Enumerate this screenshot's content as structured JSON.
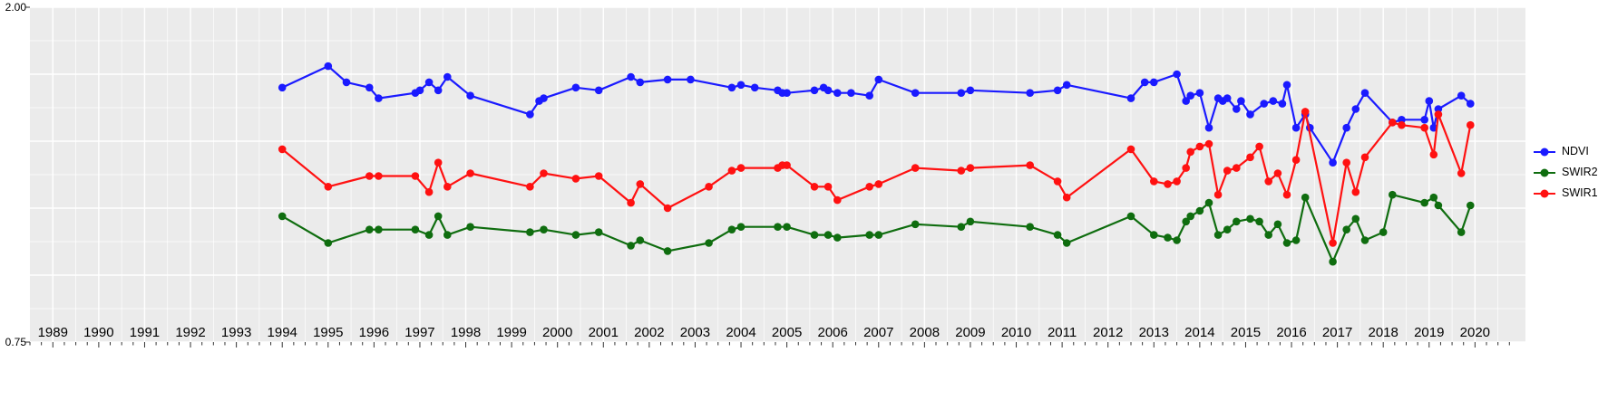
{
  "chart_data": {
    "type": "line",
    "title": "",
    "xlabel": "",
    "ylabel": "",
    "xlim": [
      1988.5,
      2021.1
    ],
    "ylim": [
      0.75,
      2.0
    ],
    "x_ticks": [
      1989,
      1990,
      1991,
      1992,
      1993,
      1994,
      1995,
      1996,
      1997,
      1998,
      1999,
      2000,
      2001,
      2002,
      2003,
      2004,
      2005,
      2006,
      2007,
      2008,
      2009,
      2010,
      2011,
      2012,
      2013,
      2014,
      2015,
      2016,
      2017,
      2018,
      2019,
      2020
    ],
    "y_gridlines": [
      0.75,
      1.0,
      1.25,
      1.5,
      1.75,
      2.0
    ],
    "y_tick_labels": [
      {
        "value": 2.0,
        "label": "2.00"
      },
      {
        "value": 0.75,
        "label": "0.75"
      }
    ],
    "panel_bg": "#EBEBEB",
    "grid_color": "#FFFFFF",
    "legend_position": "right",
    "series": [
      {
        "name": "NDVI",
        "color": "#1a1aff",
        "points": [
          [
            1994.0,
            1.7
          ],
          [
            1995.0,
            1.78
          ],
          [
            1995.4,
            1.72
          ],
          [
            1995.9,
            1.7
          ],
          [
            1996.1,
            1.66
          ],
          [
            1996.9,
            1.68
          ],
          [
            1997.0,
            1.69
          ],
          [
            1997.2,
            1.72
          ],
          [
            1997.4,
            1.69
          ],
          [
            1997.6,
            1.74
          ],
          [
            1998.1,
            1.67
          ],
          [
            1999.4,
            1.6
          ],
          [
            1999.6,
            1.65
          ],
          [
            1999.7,
            1.66
          ],
          [
            2000.4,
            1.7
          ],
          [
            2000.9,
            1.69
          ],
          [
            2001.6,
            1.74
          ],
          [
            2001.8,
            1.72
          ],
          [
            2002.4,
            1.73
          ],
          [
            2002.9,
            1.73
          ],
          [
            2003.8,
            1.7
          ],
          [
            2004.0,
            1.71
          ],
          [
            2004.3,
            1.7
          ],
          [
            2004.8,
            1.69
          ],
          [
            2004.9,
            1.68
          ],
          [
            2005.0,
            1.68
          ],
          [
            2005.6,
            1.69
          ],
          [
            2005.8,
            1.7
          ],
          [
            2005.9,
            1.69
          ],
          [
            2006.1,
            1.68
          ],
          [
            2006.4,
            1.68
          ],
          [
            2006.8,
            1.67
          ],
          [
            2007.0,
            1.73
          ],
          [
            2007.8,
            1.68
          ],
          [
            2008.8,
            1.68
          ],
          [
            2009.0,
            1.69
          ],
          [
            2010.3,
            1.68
          ],
          [
            2010.9,
            1.69
          ],
          [
            2011.1,
            1.71
          ],
          [
            2012.5,
            1.66
          ],
          [
            2012.8,
            1.72
          ],
          [
            2013.0,
            1.72
          ],
          [
            2013.5,
            1.75
          ],
          [
            2013.7,
            1.65
          ],
          [
            2013.8,
            1.67
          ],
          [
            2014.0,
            1.68
          ],
          [
            2014.2,
            1.55
          ],
          [
            2014.4,
            1.66
          ],
          [
            2014.5,
            1.65
          ],
          [
            2014.6,
            1.66
          ],
          [
            2014.8,
            1.62
          ],
          [
            2014.9,
            1.65
          ],
          [
            2015.1,
            1.6
          ],
          [
            2015.4,
            1.64
          ],
          [
            2015.6,
            1.65
          ],
          [
            2015.8,
            1.64
          ],
          [
            2015.9,
            1.71
          ],
          [
            2016.1,
            1.55
          ],
          [
            2016.3,
            1.6
          ],
          [
            2016.4,
            1.55
          ],
          [
            2016.9,
            1.42
          ],
          [
            2017.2,
            1.55
          ],
          [
            2017.4,
            1.62
          ],
          [
            2017.6,
            1.68
          ],
          [
            2018.2,
            1.57
          ],
          [
            2018.4,
            1.58
          ],
          [
            2018.9,
            1.58
          ],
          [
            2019.0,
            1.65
          ],
          [
            2019.1,
            1.55
          ],
          [
            2019.2,
            1.62
          ],
          [
            2019.7,
            1.67
          ],
          [
            2019.9,
            1.64
          ]
        ]
      },
      {
        "name": "SWIR2",
        "color": "#0f6d0f",
        "points": [
          [
            1994.0,
            1.22
          ],
          [
            1995.0,
            1.12
          ],
          [
            1995.9,
            1.17
          ],
          [
            1996.1,
            1.17
          ],
          [
            1996.9,
            1.17
          ],
          [
            1997.2,
            1.15
          ],
          [
            1997.4,
            1.22
          ],
          [
            1997.6,
            1.15
          ],
          [
            1998.1,
            1.18
          ],
          [
            1999.4,
            1.16
          ],
          [
            1999.7,
            1.17
          ],
          [
            2000.4,
            1.15
          ],
          [
            2000.9,
            1.16
          ],
          [
            2001.6,
            1.11
          ],
          [
            2001.8,
            1.13
          ],
          [
            2002.4,
            1.09
          ],
          [
            2003.3,
            1.12
          ],
          [
            2003.8,
            1.17
          ],
          [
            2004.0,
            1.18
          ],
          [
            2004.8,
            1.18
          ],
          [
            2005.0,
            1.18
          ],
          [
            2005.6,
            1.15
          ],
          [
            2005.9,
            1.15
          ],
          [
            2006.1,
            1.14
          ],
          [
            2006.8,
            1.15
          ],
          [
            2007.0,
            1.15
          ],
          [
            2007.8,
            1.19
          ],
          [
            2008.8,
            1.18
          ],
          [
            2009.0,
            1.2
          ],
          [
            2010.3,
            1.18
          ],
          [
            2010.9,
            1.15
          ],
          [
            2011.1,
            1.12
          ],
          [
            2012.5,
            1.22
          ],
          [
            2013.0,
            1.15
          ],
          [
            2013.3,
            1.14
          ],
          [
            2013.5,
            1.13
          ],
          [
            2013.7,
            1.2
          ],
          [
            2013.8,
            1.22
          ],
          [
            2014.0,
            1.24
          ],
          [
            2014.2,
            1.27
          ],
          [
            2014.4,
            1.15
          ],
          [
            2014.6,
            1.17
          ],
          [
            2014.8,
            1.2
          ],
          [
            2015.1,
            1.21
          ],
          [
            2015.3,
            1.2
          ],
          [
            2015.5,
            1.15
          ],
          [
            2015.7,
            1.19
          ],
          [
            2015.9,
            1.12
          ],
          [
            2016.1,
            1.13
          ],
          [
            2016.3,
            1.29
          ],
          [
            2016.9,
            1.05
          ],
          [
            2017.2,
            1.17
          ],
          [
            2017.4,
            1.21
          ],
          [
            2017.6,
            1.13
          ],
          [
            2018.0,
            1.16
          ],
          [
            2018.2,
            1.3
          ],
          [
            2018.9,
            1.27
          ],
          [
            2019.1,
            1.29
          ],
          [
            2019.2,
            1.26
          ],
          [
            2019.7,
            1.16
          ],
          [
            2019.9,
            1.26
          ]
        ]
      },
      {
        "name": "SWIR1",
        "color": "#ff1111",
        "points": [
          [
            1994.0,
            1.47
          ],
          [
            1995.0,
            1.33
          ],
          [
            1995.9,
            1.37
          ],
          [
            1996.1,
            1.37
          ],
          [
            1996.9,
            1.37
          ],
          [
            1997.2,
            1.31
          ],
          [
            1997.4,
            1.42
          ],
          [
            1997.6,
            1.33
          ],
          [
            1998.1,
            1.38
          ],
          [
            1999.4,
            1.33
          ],
          [
            1999.7,
            1.38
          ],
          [
            2000.4,
            1.36
          ],
          [
            2000.9,
            1.37
          ],
          [
            2001.6,
            1.27
          ],
          [
            2001.8,
            1.34
          ],
          [
            2002.4,
            1.25
          ],
          [
            2003.3,
            1.33
          ],
          [
            2003.8,
            1.39
          ],
          [
            2004.0,
            1.4
          ],
          [
            2004.8,
            1.4
          ],
          [
            2004.9,
            1.41
          ],
          [
            2005.0,
            1.41
          ],
          [
            2005.6,
            1.33
          ],
          [
            2005.9,
            1.33
          ],
          [
            2006.1,
            1.28
          ],
          [
            2006.8,
            1.33
          ],
          [
            2007.0,
            1.34
          ],
          [
            2007.8,
            1.4
          ],
          [
            2008.8,
            1.39
          ],
          [
            2009.0,
            1.4
          ],
          [
            2010.3,
            1.41
          ],
          [
            2010.9,
            1.35
          ],
          [
            2011.1,
            1.29
          ],
          [
            2012.5,
            1.47
          ],
          [
            2013.0,
            1.35
          ],
          [
            2013.3,
            1.34
          ],
          [
            2013.5,
            1.35
          ],
          [
            2013.7,
            1.4
          ],
          [
            2013.8,
            1.46
          ],
          [
            2014.0,
            1.48
          ],
          [
            2014.2,
            1.49
          ],
          [
            2014.4,
            1.3
          ],
          [
            2014.6,
            1.39
          ],
          [
            2014.8,
            1.4
          ],
          [
            2015.1,
            1.44
          ],
          [
            2015.3,
            1.48
          ],
          [
            2015.5,
            1.35
          ],
          [
            2015.7,
            1.38
          ],
          [
            2015.9,
            1.3
          ],
          [
            2016.1,
            1.43
          ],
          [
            2016.3,
            1.61
          ],
          [
            2016.9,
            1.12
          ],
          [
            2017.2,
            1.42
          ],
          [
            2017.4,
            1.31
          ],
          [
            2017.6,
            1.44
          ],
          [
            2018.2,
            1.57
          ],
          [
            2018.4,
            1.56
          ],
          [
            2018.9,
            1.55
          ],
          [
            2019.1,
            1.45
          ],
          [
            2019.2,
            1.6
          ],
          [
            2019.7,
            1.38
          ],
          [
            2019.9,
            1.56
          ]
        ]
      }
    ]
  },
  "legend": {
    "items": [
      "NDVI",
      "SWIR2",
      "SWIR1"
    ]
  }
}
